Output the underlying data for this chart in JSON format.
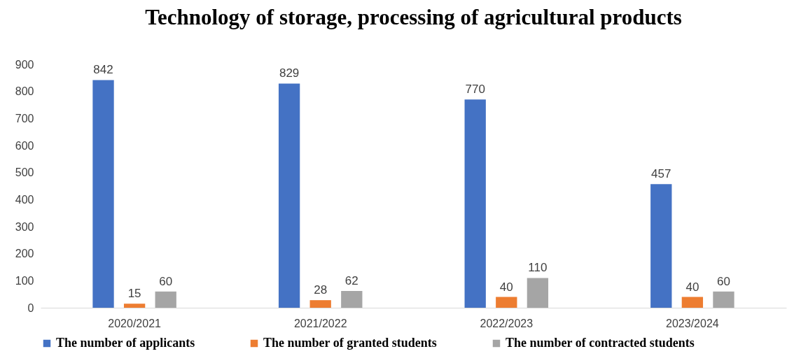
{
  "chart_data": {
    "type": "bar",
    "title": "Technology of storage, processing of agricultural products",
    "categories": [
      "2020/2021",
      "2021/2022",
      "2022/2023",
      "2023/2024"
    ],
    "series": [
      {
        "name": "The number of applicants",
        "color": "#4472c4",
        "values": [
          842,
          829,
          770,
          457
        ]
      },
      {
        "name": "The number of granted students",
        "color": "#ed7d31",
        "values": [
          15,
          28,
          40,
          40
        ]
      },
      {
        "name": "The number of contracted students",
        "color": "#a5a5a5",
        "values": [
          60,
          62,
          110,
          60
        ]
      }
    ],
    "ylim": [
      0,
      900
    ],
    "yticks": [
      0,
      100,
      200,
      300,
      400,
      500,
      600,
      700,
      800,
      900
    ],
    "data_labels": true,
    "grid": false,
    "legend": "bottom"
  }
}
